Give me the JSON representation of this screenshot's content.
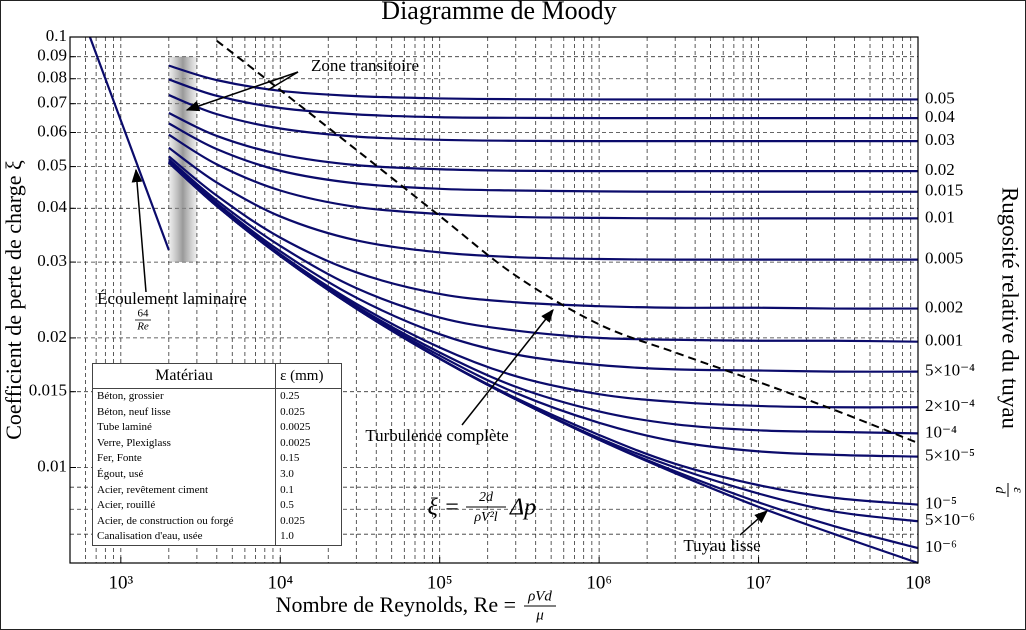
{
  "chart_data": {
    "type": "line",
    "title": "Diagramme de Moody",
    "x_label": {
      "text": "Nombre de Reynolds, Re =",
      "numerator": "ρVd",
      "denominator": "μ"
    },
    "y_label": "Coefficient de perte de charge ξ",
    "y2_label": {
      "text": "Rugosité relative du tuyau",
      "numerator": "ε",
      "denominator": "d"
    },
    "log_x": true,
    "log_y": true,
    "grid": true,
    "xlim": [
      480,
      100000000
    ],
    "ylim": [
      0.006,
      0.1
    ],
    "xticks": [
      {
        "value": 1000,
        "label": "10³"
      },
      {
        "value": 10000,
        "label": "10⁴"
      },
      {
        "value": 100000,
        "label": "10⁵"
      },
      {
        "value": 1000000,
        "label": "10⁶"
      },
      {
        "value": 10000000,
        "label": "10⁷"
      },
      {
        "value": 100000000,
        "label": "10⁸"
      }
    ],
    "xgrid_minor": [
      600,
      700,
      800,
      900,
      2000,
      3000,
      4000,
      5000,
      6000,
      7000,
      8000,
      9000,
      20000,
      30000,
      40000,
      50000,
      60000,
      70000,
      80000,
      90000,
      200000,
      300000,
      400000,
      500000,
      600000,
      700000,
      800000,
      900000,
      2000000,
      3000000,
      4000000,
      5000000,
      6000000,
      7000000,
      8000000,
      9000000,
      20000000,
      30000000,
      40000000,
      50000000,
      60000000,
      70000000,
      80000000,
      90000000
    ],
    "yticks": [
      0.1,
      0.09,
      0.08,
      0.07,
      0.06,
      0.05,
      0.04,
      0.03,
      0.02,
      0.015,
      0.01
    ],
    "ygrid_minor": [
      0.009,
      0.008,
      0.007
    ],
    "transition_zone": {
      "x": [
        2000,
        3000
      ],
      "y": [
        0.03,
        0.09
      ]
    },
    "x": [
      640,
      2000,
      4000,
      10000,
      30000,
      100000,
      300000,
      1000000,
      3000000,
      10000000,
      30000000,
      100000000
    ],
    "series": [
      {
        "name": "0.05",
        "color": "#0b0b6b",
        "values": [
          null,
          0.0858,
          0.0794,
          0.075,
          0.0729,
          0.072,
          0.0717,
          0.0716,
          0.0716,
          0.0716,
          0.0716,
          0.0716
        ]
      },
      {
        "name": "0.04",
        "color": "#0b0b6b",
        "values": [
          null,
          0.0797,
          0.073,
          0.0684,
          0.0661,
          0.0651,
          0.0649,
          0.0648,
          0.0648,
          0.0648,
          0.0648,
          0.0648
        ]
      },
      {
        "name": "0.03",
        "color": "#0b0b6b",
        "values": [
          null,
          0.0733,
          0.0662,
          0.0613,
          0.0587,
          0.0577,
          0.0574,
          0.0573,
          0.0573,
          0.0573,
          0.0573,
          0.0573
        ]
      },
      {
        "name": "0.02",
        "color": "#0b0b6b",
        "values": [
          null,
          0.0666,
          0.0589,
          0.0534,
          0.0504,
          0.0493,
          0.0489,
          0.0488,
          0.0488,
          0.0488,
          0.0488,
          0.0488
        ]
      },
      {
        "name": "0.015",
        "color": "#0b0b6b",
        "values": [
          null,
          0.063,
          0.0549,
          0.0489,
          0.0457,
          0.0444,
          0.044,
          0.0438,
          0.0437,
          0.0437,
          0.0437,
          0.0437
        ]
      },
      {
        "name": "0.01",
        "color": "#0b0b6b",
        "values": [
          null,
          0.0593,
          0.0506,
          0.044,
          0.0403,
          0.0388,
          0.0382,
          0.038,
          0.0379,
          0.0379,
          0.0379,
          0.0379
        ]
      },
      {
        "name": "0.005",
        "color": "#0b0b6b",
        "values": [
          null,
          0.0553,
          0.0459,
          0.0383,
          0.0337,
          0.0316,
          0.0308,
          0.0305,
          0.0304,
          0.0304,
          0.0304,
          0.0304
        ]
      },
      {
        "name": "0.002",
        "color": "#0b0b6b",
        "values": [
          null,
          0.0528,
          0.0428,
          0.0342,
          0.0284,
          0.0253,
          0.0242,
          0.0237,
          0.0235,
          0.0235,
          0.0234,
          0.0234
        ]
      },
      {
        "name": "0.001",
        "color": "#0b0b6b",
        "values": [
          null,
          0.052,
          0.0417,
          0.0327,
          0.0261,
          0.0223,
          0.0208,
          0.02,
          0.0198,
          0.0197,
          0.0197,
          0.0196
        ]
      },
      {
        "name": "5×10⁻⁴",
        "color": "#0b0b6b",
        "values": [
          null,
          0.0515,
          0.0411,
          0.0318,
          0.0248,
          0.0204,
          0.0183,
          0.0173,
          0.0169,
          0.0168,
          0.0167,
          0.0167
        ]
      },
      {
        "name": "2×10⁻⁴",
        "color": "#0b0b6b",
        "values": [
          null,
          0.0513,
          0.0408,
          0.0313,
          0.024,
          0.019,
          0.0163,
          0.0148,
          0.0142,
          0.0139,
          0.0138,
          0.0138
        ]
      },
      {
        "name": "10⁻⁴",
        "color": "#0b0b6b",
        "values": [
          null,
          0.0512,
          0.0406,
          0.0312,
          0.0237,
          0.0185,
          0.0154,
          0.0135,
          0.0126,
          0.0122,
          0.0121,
          0.012
        ]
      },
      {
        "name": "5×10⁻⁵",
        "color": "#0b0b6b",
        "values": [
          null,
          0.0511,
          0.0406,
          0.0311,
          0.0235,
          0.0182,
          0.0149,
          0.0127,
          0.0115,
          0.0109,
          0.0107,
          0.0106
        ]
      },
      {
        "name": "10⁻⁵",
        "color": "#0b0b6b",
        "values": [
          null,
          0.0511,
          0.0405,
          0.031,
          0.0234,
          0.0179,
          0.0145,
          0.0119,
          0.0102,
          0.0091,
          0.0085,
          0.0082
        ]
      },
      {
        "name": "5×10⁻⁶",
        "color": "#0b0b6b",
        "values": [
          null,
          0.0511,
          0.0405,
          0.031,
          0.0234,
          0.0179,
          0.0144,
          0.0117,
          0.01,
          0.0087,
          0.0079,
          0.0075
        ]
      },
      {
        "name": "10⁻⁶",
        "color": "#0b0b6b",
        "values": [
          null,
          0.0511,
          0.0405,
          0.031,
          0.0234,
          0.0179,
          0.0144,
          0.0116,
          0.0098,
          0.0083,
          0.0073,
          0.0065
        ]
      },
      {
        "name": "Tuyau lisse",
        "color": "#0b0b6b",
        "values": [
          null,
          0.0511,
          0.0405,
          0.031,
          0.0234,
          0.0179,
          0.0144,
          0.0116,
          0.0097,
          0.0081,
          0.007,
          0.006
        ]
      },
      {
        "name": "Écoulement laminaire",
        "color": "#0b0b6b",
        "values": [
          0.1,
          0.032,
          null,
          null,
          null,
          null,
          null,
          null,
          null,
          null,
          null,
          null
        ]
      },
      {
        "name": "Turbulence complète",
        "color": "#000000",
        "dashed": true,
        "values": [
          null,
          null,
          0.098,
          0.0753,
          0.0547,
          0.0384,
          0.0279,
          0.0215,
          0.0185,
          0.0158,
          0.0136,
          0.0114
        ]
      }
    ],
    "laminar_formula": {
      "numerator": "64",
      "denominator": "Re"
    },
    "transition_label": "Zone transitoire",
    "formula": {
      "lhs": "ξ =",
      "numerator": "2d",
      "denominator": "ρV²l",
      "rhs": "Δp"
    },
    "table": {
      "header": [
        "Matériau",
        "ε (mm)"
      ],
      "rows": [
        [
          "Béton, grossier",
          "0.25"
        ],
        [
          "Béton, neuf lisse",
          "0.025"
        ],
        [
          "Tube laminé",
          "0.0025"
        ],
        [
          "Verre, Plexiglass",
          "0.0025"
        ],
        [
          "Fer, Fonte",
          "0.15"
        ],
        [
          "Égout, usé",
          "3.0"
        ],
        [
          "Acier, revêtement ciment",
          "0.1"
        ],
        [
          "Acier, rouillé",
          "0.5"
        ],
        [
          "Acier, de construction ou forgé",
          "0.025"
        ],
        [
          "Canalisation d'eau, usée",
          "1.0"
        ]
      ]
    }
  }
}
